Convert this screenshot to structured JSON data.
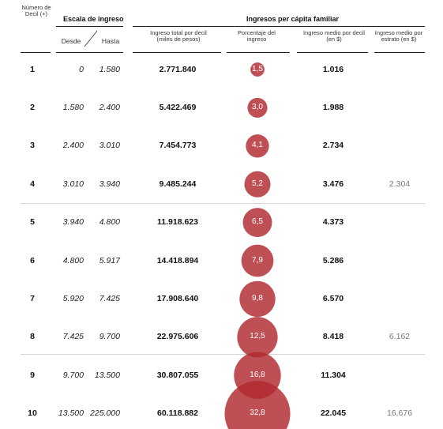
{
  "header": {
    "decil_label": "Número de Decil (+)",
    "escala_label": "Escala de ingreso",
    "desde_label": "Desde",
    "hasta_label": "Hasta",
    "ingresos_group_label": "Ingresos per cápita familiar",
    "col_total_label": "Ingreso total por decil (miles de pesos)",
    "col_pct_label": "Porcentaje del ingreso",
    "col_medio_label": "Ingreso medio por decil (en $)",
    "col_estrato_label": "Ingreso medio por estrato (en $)"
  },
  "colors": {
    "bubble": "#b02a30",
    "text": "#111111",
    "muted": "#777777"
  },
  "chart_data": {
    "type": "table",
    "columns": [
      "Número de Decil",
      "Desde",
      "Hasta",
      "Ingreso total por decil (miles de pesos)",
      "Porcentaje del ingreso",
      "Ingreso medio por decil (en $)",
      "Ingreso medio por estrato (en $)"
    ],
    "rows": [
      {
        "decil": "1",
        "desde": "0",
        "hasta": "1.580",
        "total": "2.771.840",
        "pct_label": "1,5",
        "pct": 1.5,
        "medio": "1.016",
        "estrato": ""
      },
      {
        "decil": "2",
        "desde": "1.580",
        "hasta": "2.400",
        "total": "5.422.469",
        "pct_label": "3,0",
        "pct": 3.0,
        "medio": "1.988",
        "estrato": ""
      },
      {
        "decil": "3",
        "desde": "2.400",
        "hasta": "3.010",
        "total": "7.454.773",
        "pct_label": "4,1",
        "pct": 4.1,
        "medio": "2.734",
        "estrato": ""
      },
      {
        "decil": "4",
        "desde": "3.010",
        "hasta": "3.940",
        "total": "9.485.244",
        "pct_label": "5,2",
        "pct": 5.2,
        "medio": "3.476",
        "estrato": "2.304"
      },
      {
        "decil": "5",
        "desde": "3.940",
        "hasta": "4.800",
        "total": "11.918.623",
        "pct_label": "6,5",
        "pct": 6.5,
        "medio": "4.373",
        "estrato": ""
      },
      {
        "decil": "6",
        "desde": "4.800",
        "hasta": "5.917",
        "total": "14.418.894",
        "pct_label": "7,9",
        "pct": 7.9,
        "medio": "5.286",
        "estrato": ""
      },
      {
        "decil": "7",
        "desde": "5.920",
        "hasta": "7.425",
        "total": "17.908.640",
        "pct_label": "9,8",
        "pct": 9.8,
        "medio": "6.570",
        "estrato": ""
      },
      {
        "decil": "8",
        "desde": "7.425",
        "hasta": "9.700",
        "total": "22.975.606",
        "pct_label": "12,5",
        "pct": 12.5,
        "medio": "8.418",
        "estrato": "6.162"
      },
      {
        "decil": "9",
        "desde": "9.700",
        "hasta": "13.500",
        "total": "30.807.055",
        "pct_label": "16,8",
        "pct": 16.8,
        "medio": "11.304",
        "estrato": ""
      },
      {
        "decil": "10",
        "desde": "13.500",
        "hasta": "225.000",
        "total": "60.118.882",
        "pct_label": "32,8",
        "pct": 32.8,
        "medio": "22.045",
        "estrato": "16.676"
      }
    ]
  }
}
